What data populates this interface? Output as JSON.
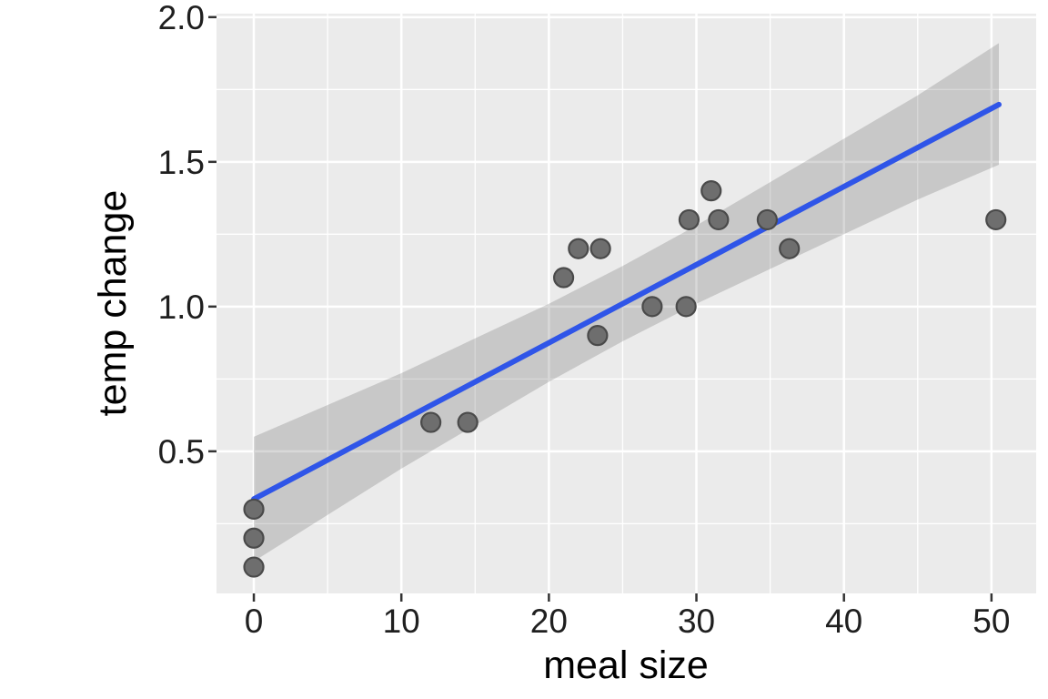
{
  "chart_data": {
    "type": "scatter",
    "title": "",
    "xlabel": "meal size",
    "ylabel": "temp change",
    "legend_position": "none",
    "grid": true,
    "xlim": [
      -2.53,
      53.03
    ],
    "ylim": [
      0.009,
      2.012
    ],
    "x_tick_values": [
      0,
      10,
      20,
      30,
      40,
      50
    ],
    "x_tick_labels": [
      "0",
      "10",
      "20",
      "30",
      "40",
      "50"
    ],
    "y_tick_values": [
      0.5,
      1.0,
      1.5,
      2.0
    ],
    "y_tick_labels": [
      "0.5",
      "1.0",
      "1.5",
      "2.0"
    ],
    "x_minor_grid_values": [
      5,
      15,
      25,
      35,
      45
    ],
    "y_minor_grid_values": [
      0.25,
      0.75,
      1.25,
      1.75
    ],
    "points": [
      [
        0,
        0.3
      ],
      [
        0,
        0.2
      ],
      [
        0,
        0.1
      ],
      [
        12,
        0.6
      ],
      [
        14.5,
        0.6
      ],
      [
        21,
        1.1
      ],
      [
        22,
        1.2
      ],
      [
        23.5,
        1.2
      ],
      [
        23.3,
        0.9
      ],
      [
        27,
        1.0
      ],
      [
        29.3,
        1.0
      ],
      [
        29.5,
        1.3
      ],
      [
        31,
        1.4
      ],
      [
        31.5,
        1.3
      ],
      [
        34.8,
        1.3
      ],
      [
        36.3,
        1.2
      ],
      [
        50.3,
        1.3
      ]
    ],
    "regression_line": {
      "x_start": 0,
      "y_start": 0.335,
      "x_end": 50.5,
      "y_end": 1.698
    },
    "confidence_band": [
      [
        0,
        0.12,
        0.55
      ],
      [
        5,
        0.28,
        0.66
      ],
      [
        10,
        0.44,
        0.77
      ],
      [
        15,
        0.59,
        0.89
      ],
      [
        20,
        0.74,
        1.01
      ],
      [
        25,
        0.88,
        1.14
      ],
      [
        30,
        1.01,
        1.28
      ],
      [
        35,
        1.13,
        1.43
      ],
      [
        40,
        1.25,
        1.58
      ],
      [
        45,
        1.37,
        1.73
      ],
      [
        50.5,
        1.49,
        1.91
      ]
    ],
    "colors": {
      "panel_background": "#EBEBEB",
      "grid": "#FFFFFF",
      "point_fill": "#6E6E6E",
      "point_stroke": "#4A4A4A",
      "smooth_line": "#2F55E8",
      "ribbon_gray": "#3C3C3C",
      "ribbon_opacity": 0.2,
      "axis_text": "#1F1F1F",
      "axis_title": "#000000",
      "tick_mark": "#333333"
    }
  }
}
